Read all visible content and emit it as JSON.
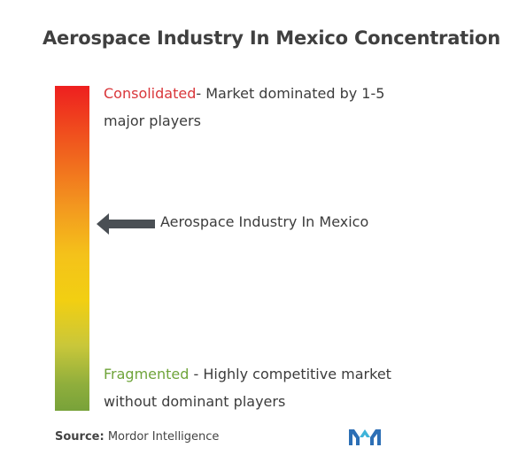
{
  "title": "Aerospace Industry In Mexico Concentration",
  "scale": {
    "top_keyword": "Consolidated",
    "top_description": "- Market dominated by 1-5 major players",
    "bottom_keyword": "Fragmented",
    "bottom_description": " - Highly competitive market without dominant players",
    "marker_label": "Aerospace Industry In Mexico",
    "marker_level": 0.42,
    "colors": {
      "top": "#ee1f1f",
      "middle": "#f4c21a",
      "bottom": "#78a23a",
      "consolidated_text": "#d9363a",
      "fragmented_text": "#6fa43a"
    }
  },
  "source": {
    "prefix": "Source:",
    "text": " Mordor Intelligence"
  },
  "icons": {
    "arrow": "arrow-left-icon",
    "logo": "mordor-intelligence-logo"
  }
}
